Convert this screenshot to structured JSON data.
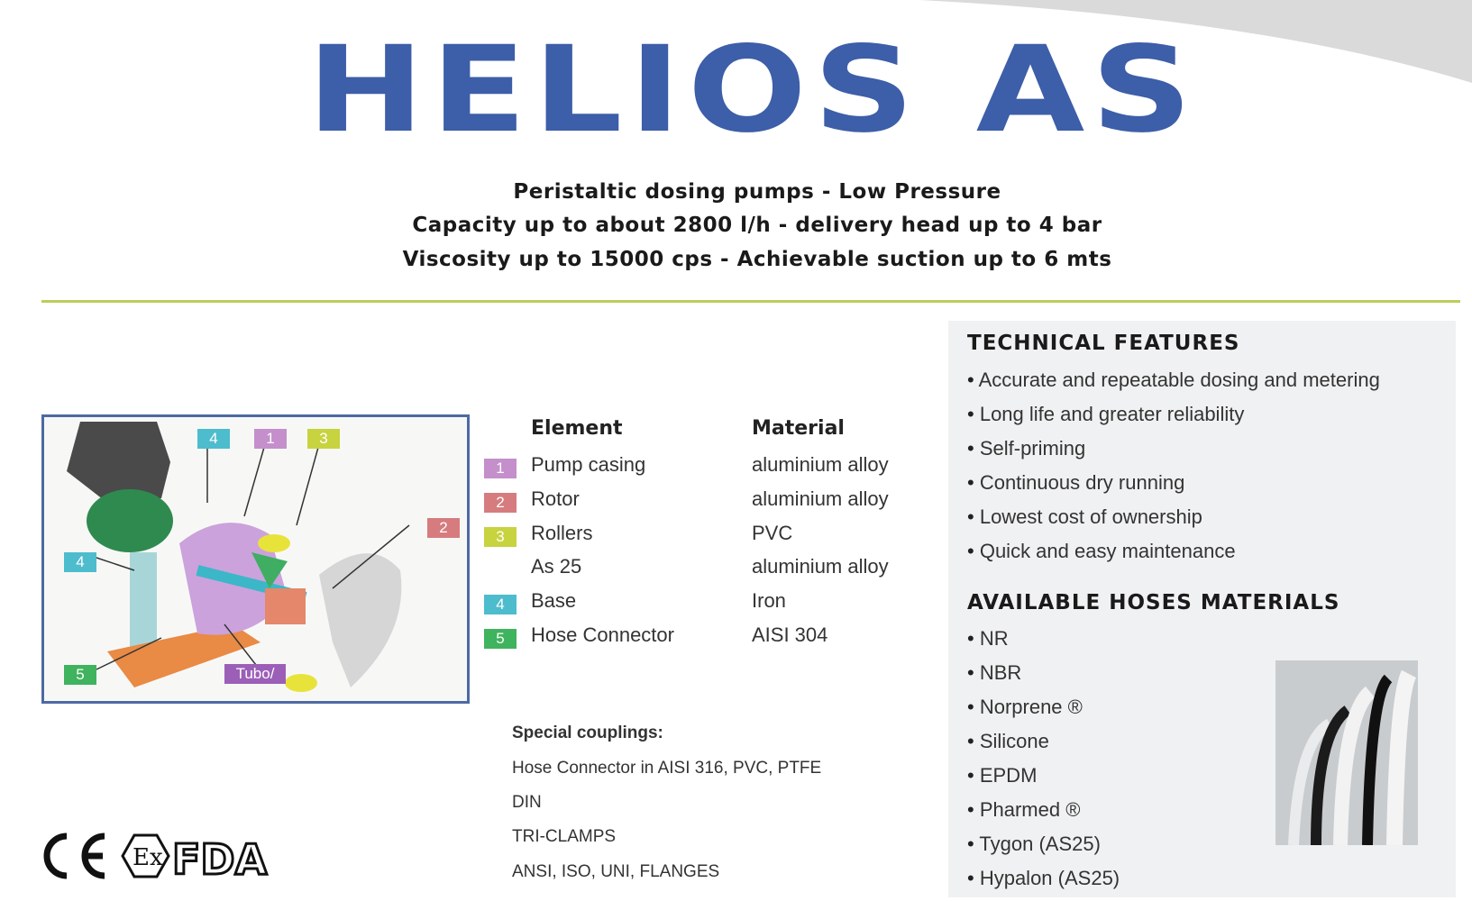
{
  "title": "HELIOS AS",
  "subtitle": [
    "Peristaltic dosing pumps - Low Pressure",
    "Capacity up to about 2800 l/h - delivery head up to 4 bar",
    "Viscosity up to 15000 cps - Achievable suction up to 6 mts"
  ],
  "diagram": {
    "labels": [
      "4",
      "1",
      "3",
      "4",
      "2",
      "5",
      "Tubo/"
    ]
  },
  "table": {
    "headers": [
      "Element",
      "Material"
    ],
    "rows": [
      {
        "num": "1",
        "color": "#c48fcb",
        "element": "Pump casing",
        "material": "aluminium alloy"
      },
      {
        "num": "2",
        "color": "#d67c7e",
        "element": "Rotor",
        "material": "aluminium alloy"
      },
      {
        "num": "3",
        "color": "#c7d33f",
        "element": "Rollers",
        "material": "PVC"
      },
      {
        "num": "",
        "color": "",
        "element": "As 25",
        "material": "aluminium alloy"
      },
      {
        "num": "4",
        "color": "#4dbccd",
        "element": "Base",
        "material": "Iron"
      },
      {
        "num": "5",
        "color": "#3fb35d",
        "element": "Hose Connector",
        "material": "AISI 304"
      }
    ]
  },
  "special": {
    "title": "Special couplings:",
    "items": [
      "Hose Connector in AISI 316, PVC, PTFE",
      "DIN",
      "TRI-CLAMPS",
      "ANSI, ISO, UNI, FLANGES"
    ]
  },
  "features": {
    "title": "TECHNICAL FEATURES",
    "items": [
      "Accurate and repeatable dosing and metering",
      "Long life and greater reliability",
      "Self-priming",
      "Continuous dry running",
      "Lowest cost of ownership",
      "Quick and easy maintenance"
    ]
  },
  "hoses": {
    "title": "AVAILABLE HOSES MATERIALS",
    "items": [
      "NR",
      "NBR",
      "Norprene ®",
      "Silicone",
      "EPDM",
      "Pharmed ®",
      "Tygon (AS25)",
      "Hypalon (AS25)"
    ]
  },
  "certifications": [
    "CE",
    "Ex",
    "FDA"
  ],
  "colors": {
    "title": "#3d5ea8",
    "rule": "#b9cf5a",
    "panel": "#f0f1f2"
  }
}
